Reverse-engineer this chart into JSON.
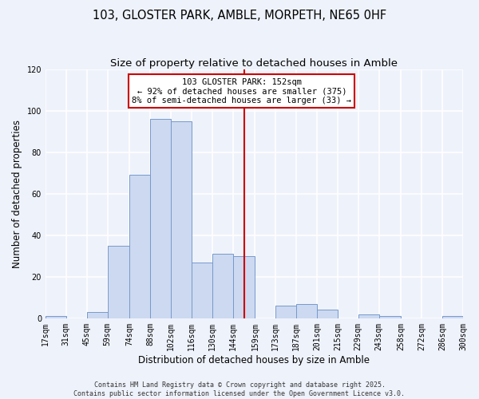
{
  "title": "103, GLOSTER PARK, AMBLE, MORPETH, NE65 0HF",
  "subtitle": "Size of property relative to detached houses in Amble",
  "xlabel": "Distribution of detached houses by size in Amble",
  "ylabel": "Number of detached properties",
  "bar_color": "#ccd9f0",
  "bar_edge_color": "#7799cc",
  "background_color": "#eef2fb",
  "grid_color": "#ffffff",
  "bin_labels": [
    "17sqm",
    "31sqm",
    "45sqm",
    "59sqm",
    "74sqm",
    "88sqm",
    "102sqm",
    "116sqm",
    "130sqm",
    "144sqm",
    "159sqm",
    "173sqm",
    "187sqm",
    "201sqm",
    "215sqm",
    "229sqm",
    "243sqm",
    "258sqm",
    "272sqm",
    "286sqm",
    "300sqm"
  ],
  "bin_edges": [
    17,
    31,
    45,
    59,
    74,
    88,
    102,
    116,
    130,
    144,
    159,
    173,
    187,
    201,
    215,
    229,
    243,
    258,
    272,
    286,
    300
  ],
  "bar_heights": [
    1,
    0,
    3,
    35,
    69,
    96,
    95,
    27,
    31,
    30,
    0,
    6,
    7,
    4,
    0,
    2,
    1,
    0,
    0,
    1
  ],
  "vline_x": 152,
  "vline_color": "#cc0000",
  "ylim": [
    0,
    120
  ],
  "annotation_line1": "103 GLOSTER PARK: 152sqm",
  "annotation_line2": "← 92% of detached houses are smaller (375)",
  "annotation_line3": "8% of semi-detached houses are larger (33) →",
  "footer_text": "Contains HM Land Registry data © Crown copyright and database right 2025.\nContains public sector information licensed under the Open Government Licence v3.0.",
  "title_fontsize": 10.5,
  "subtitle_fontsize": 9.5,
  "axis_label_fontsize": 8.5,
  "tick_fontsize": 7,
  "annotation_fontsize": 7.5,
  "footer_fontsize": 6
}
